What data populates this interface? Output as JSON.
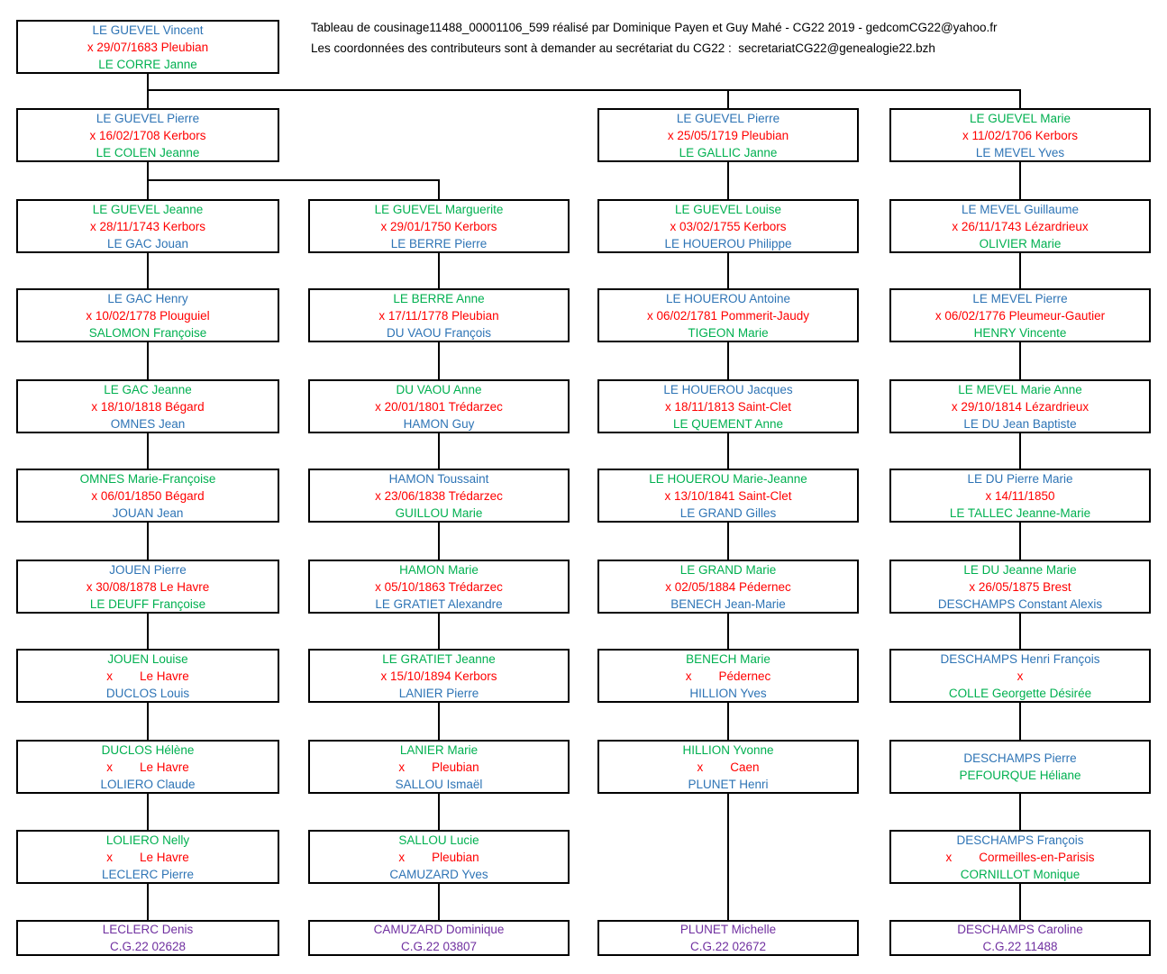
{
  "header": {
    "line1": "Tableau de cousinage11488_00001106_599 réalisé par Dominique Payen et Guy Mahé - CG22 2019 - gedcomCG22@yahoo.fr",
    "line2": "Les coordonnées des contributeurs sont à demander au secrétariat du CG22 :  secretariatCG22@genealogie22.bzh"
  },
  "colors": {
    "male": "#2E74B5",
    "female": "#00B050",
    "marriage": "#FF0000",
    "terminal": "#7030A0",
    "line": "#000000",
    "background": "#FFFFFF"
  },
  "tree": {
    "columns": [
      {
        "id": "col-1",
        "boxes": [
          {
            "row": 0,
            "name": "LE GUEVEL Vincent",
            "name_gender": "male",
            "marriage": "x 29/07/1683 Pleubian",
            "spouse": "LE CORRE Janne",
            "spouse_gender": "female"
          },
          {
            "row": 1,
            "name": "LE GUEVEL Pierre",
            "name_gender": "male",
            "marriage": "x 16/02/1708 Kerbors",
            "spouse": "LE COLEN Jeanne",
            "spouse_gender": "female"
          },
          {
            "row": 2,
            "name": "LE GUEVEL Jeanne",
            "name_gender": "female",
            "marriage": "x 28/11/1743 Kerbors",
            "spouse": "LE GAC Jouan",
            "spouse_gender": "male"
          },
          {
            "row": 3,
            "name": "LE GAC Henry",
            "name_gender": "male",
            "marriage": "x 10/02/1778 Plouguiel",
            "spouse": "SALOMON Françoise",
            "spouse_gender": "female"
          },
          {
            "row": 4,
            "name": "LE GAC Jeanne",
            "name_gender": "female",
            "marriage": "x 18/10/1818 Bégard",
            "spouse": "OMNES Jean",
            "spouse_gender": "male"
          },
          {
            "row": 5,
            "name": "OMNES Marie-Françoise",
            "name_gender": "female",
            "marriage": "x 06/01/1850 Bégard",
            "spouse": "JOUAN Jean",
            "spouse_gender": "male"
          },
          {
            "row": 6,
            "name": "JOUEN Pierre",
            "name_gender": "male",
            "marriage": "x 30/08/1878 Le Havre",
            "spouse": "LE DEUFF Françoise",
            "spouse_gender": "female"
          },
          {
            "row": 7,
            "name": "JOUEN Louise",
            "name_gender": "female",
            "marriage": "x        Le Havre",
            "spouse": "DUCLOS Louis",
            "spouse_gender": "male"
          },
          {
            "row": 8,
            "name": "DUCLOS Hélène",
            "name_gender": "female",
            "marriage": "x        Le Havre",
            "spouse": "LOLIERO Claude",
            "spouse_gender": "male"
          },
          {
            "row": 9,
            "name": "LOLIERO Nelly",
            "name_gender": "female",
            "marriage": "x        Le Havre",
            "spouse": "LECLERC Pierre",
            "spouse_gender": "male"
          },
          {
            "row": 10,
            "terminal": true,
            "name": "LECLERC Denis",
            "ref": "C.G.22 02628"
          }
        ]
      },
      {
        "id": "col-2",
        "boxes": [
          {
            "row": 2,
            "name": "LE GUEVEL Marguerite",
            "name_gender": "female",
            "marriage": "x 29/01/1750 Kerbors",
            "spouse": "LE BERRE Pierre",
            "spouse_gender": "male"
          },
          {
            "row": 3,
            "name": "LE BERRE Anne",
            "name_gender": "female",
            "marriage": "x 17/11/1778 Pleubian",
            "spouse": "DU VAOU François",
            "spouse_gender": "male"
          },
          {
            "row": 4,
            "name": "DU VAOU Anne",
            "name_gender": "female",
            "marriage": "x 20/01/1801 Trédarzec",
            "spouse": "HAMON Guy",
            "spouse_gender": "male"
          },
          {
            "row": 5,
            "name": "HAMON Toussaint",
            "name_gender": "male",
            "marriage": "x 23/06/1838 Trédarzec",
            "spouse": "GUILLOU Marie",
            "spouse_gender": "female"
          },
          {
            "row": 6,
            "name": "HAMON Marie",
            "name_gender": "female",
            "marriage": "x 05/10/1863 Trédarzec",
            "spouse": "LE GRATIET Alexandre",
            "spouse_gender": "male"
          },
          {
            "row": 7,
            "name": "LE GRATIET Jeanne",
            "name_gender": "female",
            "marriage": "x 15/10/1894 Kerbors",
            "spouse": "LANIER Pierre",
            "spouse_gender": "male"
          },
          {
            "row": 8,
            "name": "LANIER Marie",
            "name_gender": "female",
            "marriage": "x        Pleubian",
            "spouse": "SALLOU Ismaël",
            "spouse_gender": "male"
          },
          {
            "row": 9,
            "name": "SALLOU Lucie",
            "name_gender": "female",
            "marriage": "x        Pleubian",
            "spouse": "CAMUZARD Yves",
            "spouse_gender": "male"
          },
          {
            "row": 10,
            "terminal": true,
            "name": "CAMUZARD Dominique",
            "ref": "C.G.22 03807"
          }
        ]
      },
      {
        "id": "col-3",
        "boxes": [
          {
            "row": 1,
            "name": "LE GUEVEL Pierre",
            "name_gender": "male",
            "marriage": "x 25/05/1719 Pleubian",
            "spouse": "LE GALLIC Janne",
            "spouse_gender": "female"
          },
          {
            "row": 2,
            "name": "LE GUEVEL Louise",
            "name_gender": "female",
            "marriage": "x 03/02/1755 Kerbors",
            "spouse": "LE HOUEROU Philippe",
            "spouse_gender": "male"
          },
          {
            "row": 3,
            "name": "LE HOUEROU Antoine",
            "name_gender": "male",
            "marriage": "x 06/02/1781 Pommerit-Jaudy",
            "spouse": "TIGEON Marie",
            "spouse_gender": "female"
          },
          {
            "row": 4,
            "name": "LE HOUEROU Jacques",
            "name_gender": "male",
            "marriage": "x 18/11/1813 Saint-Clet",
            "spouse": "LE QUEMENT Anne",
            "spouse_gender": "female"
          },
          {
            "row": 5,
            "name": "LE HOUEROU Marie-Jeanne",
            "name_gender": "female",
            "marriage": "x 13/10/1841 Saint-Clet",
            "spouse": "LE GRAND Gilles",
            "spouse_gender": "male"
          },
          {
            "row": 6,
            "name": "LE GRAND Marie",
            "name_gender": "female",
            "marriage": "x 02/05/1884 Pédernec",
            "spouse": "BENECH Jean-Marie",
            "spouse_gender": "male"
          },
          {
            "row": 7,
            "name": "BENECH Marie",
            "name_gender": "female",
            "marriage": "x        Pédernec",
            "spouse": "HILLION Yves",
            "spouse_gender": "male"
          },
          {
            "row": 8,
            "name": "HILLION Yvonne",
            "name_gender": "female",
            "marriage": "x        Caen",
            "spouse": "PLUNET Henri",
            "spouse_gender": "male"
          },
          {
            "row": 10,
            "terminal": true,
            "name": "PLUNET Michelle",
            "ref": "C.G.22 02672"
          }
        ]
      },
      {
        "id": "col-4",
        "boxes": [
          {
            "row": 1,
            "name": "LE GUEVEL Marie",
            "name_gender": "female",
            "marriage": "x 11/02/1706 Kerbors",
            "spouse": "LE MEVEL Yves",
            "spouse_gender": "male"
          },
          {
            "row": 2,
            "name": "LE MEVEL Guillaume",
            "name_gender": "male",
            "marriage": "x 26/11/1743 Lézardrieux",
            "spouse": "OLIVIER Marie",
            "spouse_gender": "female"
          },
          {
            "row": 3,
            "name": "LE MEVEL Pierre",
            "name_gender": "male",
            "marriage": "x 06/02/1776 Pleumeur-Gautier",
            "spouse": "HENRY Vincente",
            "spouse_gender": "female"
          },
          {
            "row": 4,
            "name": "LE MEVEL Marie Anne",
            "name_gender": "female",
            "marriage": "x 29/10/1814 Lézardrieux",
            "spouse": "LE DU Jean Baptiste",
            "spouse_gender": "male"
          },
          {
            "row": 5,
            "name": "LE DU Pierre Marie",
            "name_gender": "male",
            "marriage": "x 14/11/1850",
            "spouse": "LE TALLEC Jeanne-Marie",
            "spouse_gender": "female"
          },
          {
            "row": 6,
            "name": "LE DU Jeanne Marie",
            "name_gender": "female",
            "marriage": "x 26/05/1875 Brest",
            "spouse": "DESCHAMPS Constant Alexis",
            "spouse_gender": "male"
          },
          {
            "row": 7,
            "name": "DESCHAMPS Henri François",
            "name_gender": "male",
            "marriage": "x",
            "spouse": "COLLE Georgette Désirée",
            "spouse_gender": "female"
          },
          {
            "row": 8,
            "name": "DESCHAMPS Pierre",
            "name_gender": "male",
            "marriage": "",
            "spouse": "PEFOURQUE Héliane",
            "spouse_gender": "female"
          },
          {
            "row": 9,
            "name": "DESCHAMPS François",
            "name_gender": "male",
            "marriage": "x        Cormeilles-en-Parisis",
            "spouse": "CORNILLOT Monique",
            "spouse_gender": "female"
          },
          {
            "row": 10,
            "terminal": true,
            "name": "DESCHAMPS Caroline",
            "ref": "C.G.22 11488"
          }
        ]
      }
    ]
  }
}
